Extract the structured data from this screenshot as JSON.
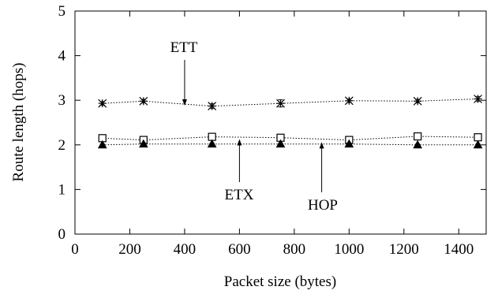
{
  "chart_data": {
    "type": "line",
    "xlabel": "Packet size (bytes)",
    "ylabel": "Route length (hops)",
    "xlim": [
      0,
      1500
    ],
    "ylim": [
      0,
      5
    ],
    "xticks": [
      0,
      200,
      400,
      600,
      800,
      1000,
      1200,
      1400
    ],
    "yticks": [
      0,
      1,
      2,
      3,
      4,
      5
    ],
    "x": [
      100,
      250,
      500,
      750,
      1000,
      1250,
      1470
    ],
    "grid": false,
    "series": [
      {
        "name": "ETT",
        "marker": "asterisk",
        "values": [
          2.93,
          2.98,
          2.87,
          2.93,
          2.99,
          2.98,
          3.03
        ],
        "errors": [
          0.04,
          0.04,
          0.05,
          0.08,
          0.04,
          0.04,
          0.05
        ]
      },
      {
        "name": "ETX",
        "marker": "square",
        "values": [
          2.15,
          2.11,
          2.18,
          2.16,
          2.11,
          2.19,
          2.17
        ],
        "errors": [
          0.03,
          0.03,
          0.03,
          0.03,
          0.03,
          0.03,
          0.03
        ]
      },
      {
        "name": "HOP",
        "marker": "triangle",
        "values": [
          2.0,
          2.02,
          2.02,
          2.02,
          2.02,
          2.0,
          2.0
        ],
        "errors": [
          0.02,
          0.02,
          0.02,
          0.02,
          0.02,
          0.02,
          0.02
        ]
      }
    ],
    "annotations": [
      {
        "text": "ETT",
        "series": "ETT",
        "arrow_x": 400,
        "arrow_y": 2.88
      },
      {
        "text": "ETX",
        "series": "ETX",
        "arrow_x": 600,
        "arrow_y": 2.13
      },
      {
        "text": "HOP",
        "series": "HOP",
        "arrow_x": 900,
        "arrow_y": 2.06
      }
    ]
  }
}
